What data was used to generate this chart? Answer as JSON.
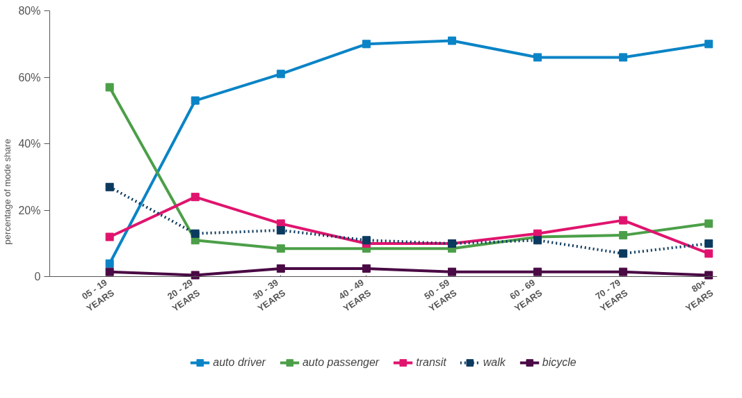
{
  "chart_data": {
    "type": "line",
    "ylabel": "percentage of mode share",
    "categories": [
      "05 - 19\nYEARS",
      "20 - 29\nYEARS",
      "30 - 39\nYEARS",
      "40 - 49\nYEARS",
      "50 - 59\nYEARS",
      "60 - 69\nYEARS",
      "70 - 79\nYEARS",
      "80+\nYEARS"
    ],
    "ylim": [
      0,
      80
    ],
    "yticks": [
      {
        "value": 0,
        "label": "0"
      },
      {
        "value": 20,
        "label": "20%"
      },
      {
        "value": 40,
        "label": "40%"
      },
      {
        "value": 60,
        "label": "60%"
      },
      {
        "value": 80,
        "label": "80%"
      }
    ],
    "grid": false,
    "legend": "bottom",
    "marker": "square",
    "series": [
      {
        "name": "auto driver",
        "color": "#0a84c6",
        "values": [
          4,
          53,
          61,
          70,
          71,
          66,
          66,
          70
        ]
      },
      {
        "name": "auto passenger",
        "color": "#4c9f48",
        "values": [
          57,
          11,
          8.5,
          8.5,
          8.5,
          12,
          12.5,
          16
        ]
      },
      {
        "name": "transit",
        "color": "#e0146e",
        "values": [
          12,
          24,
          16,
          10,
          10,
          13,
          17,
          7
        ]
      },
      {
        "name": "walk",
        "color": "#0b3a5f",
        "values": [
          27,
          13,
          14,
          11,
          10,
          11,
          7,
          10
        ],
        "line_style": "dotted"
      },
      {
        "name": "bicycle",
        "color": "#4a0a45",
        "values": [
          1.5,
          0.5,
          2.5,
          2.5,
          1.5,
          1.5,
          1.5,
          0.5
        ]
      }
    ]
  }
}
